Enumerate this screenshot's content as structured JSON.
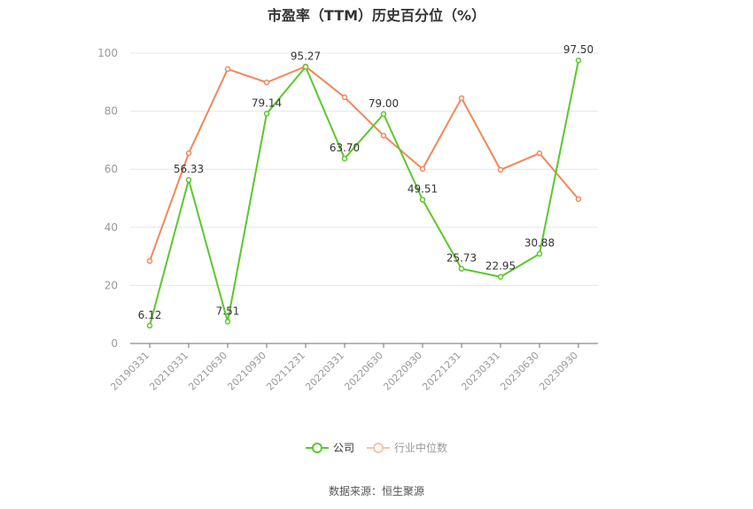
{
  "title": "市盈率（TTM）历史百分位（%）",
  "legend": {
    "company_label": "公司",
    "industry_label": "行业中位数"
  },
  "source": "数据来源：恒生聚源",
  "colors": {
    "company": "#5cc72e",
    "industry": "#f0885a",
    "grid": "#e0e6f1",
    "axis": "#6e7079",
    "tick_label": "#999999"
  },
  "chart_data": {
    "type": "line",
    "title": "市盈率（TTM）历史百分位（%）",
    "xlabel": "",
    "ylabel": "",
    "ylim": [
      0,
      100
    ],
    "yticks": [
      0,
      20,
      40,
      60,
      80,
      100
    ],
    "grid": true,
    "legend_position": "bottom",
    "categories": [
      "20190331",
      "20210331",
      "20210630",
      "20210930",
      "20211231",
      "20220331",
      "20220630",
      "20220930",
      "20221231",
      "20230331",
      "20230630",
      "20230930"
    ],
    "series": [
      {
        "name": "公司",
        "values": [
          6.12,
          56.33,
          7.51,
          79.14,
          95.27,
          63.7,
          79.0,
          49.51,
          25.73,
          22.95,
          30.88,
          97.5
        ],
        "labels": [
          "6.12",
          "56.33",
          "7.51",
          "79.14",
          "95.27",
          "63.70",
          "79.00",
          "49.51",
          "25.73",
          "22.95",
          "30.88",
          "97.50"
        ]
      },
      {
        "name": "行业中位数",
        "values": [
          28.4,
          65.5,
          94.5,
          89.9,
          95.4,
          84.8,
          71.6,
          60.1,
          84.5,
          59.8,
          65.5,
          49.7
        ]
      }
    ]
  },
  "source_label": "数据来源：恒生聚源"
}
